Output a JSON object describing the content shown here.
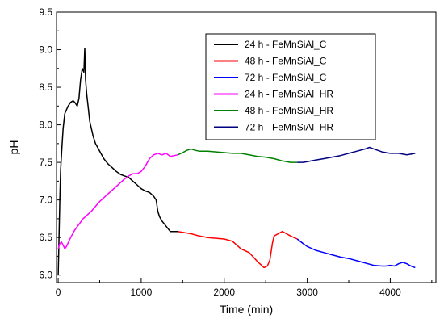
{
  "chart_data": {
    "type": "line",
    "title": "",
    "xlabel": "Time (min)",
    "ylabel": "pH",
    "xlim": [
      -20,
      4550
    ],
    "ylim": [
      5.9,
      9.5
    ],
    "xticks": [
      0,
      1000,
      2000,
      3000,
      4000
    ],
    "yticks": [
      6.0,
      6.5,
      7.0,
      7.5,
      8.0,
      8.5,
      9.0,
      9.5
    ],
    "ytick_labels": [
      "6.0",
      "6.5",
      "7.0",
      "7.5",
      "8.0",
      "8.5",
      "9.0",
      "9.5"
    ],
    "grid": false,
    "legend_position": "top-right",
    "series": [
      {
        "name": "24 h - FeMnSiAl_C",
        "color": "#000000",
        "x": [
          0,
          10,
          20,
          30,
          45,
          60,
          80,
          100,
          120,
          150,
          180,
          200,
          230,
          250,
          270,
          290,
          310,
          320,
          330,
          345,
          360,
          380,
          400,
          420,
          450,
          500,
          550,
          600,
          650,
          700,
          750,
          800,
          850,
          900,
          950,
          1000,
          1050,
          1100,
          1150,
          1180,
          1200,
          1220,
          1250,
          1300,
          1350,
          1400,
          1440
        ],
        "y": [
          6.0,
          6.5,
          7.0,
          7.4,
          7.7,
          7.95,
          8.15,
          8.2,
          8.25,
          8.3,
          8.32,
          8.3,
          8.25,
          8.35,
          8.6,
          8.75,
          8.7,
          9.02,
          8.6,
          8.4,
          8.25,
          8.05,
          7.95,
          7.85,
          7.75,
          7.65,
          7.55,
          7.48,
          7.43,
          7.38,
          7.34,
          7.32,
          7.3,
          7.25,
          7.2,
          7.15,
          7.12,
          7.1,
          7.05,
          7.0,
          6.85,
          6.78,
          6.72,
          6.65,
          6.58,
          6.58,
          6.58
        ]
      },
      {
        "name": "48 h - FeMnSiAl_C",
        "color": "#ff0000",
        "x": [
          1440,
          1500,
          1600,
          1700,
          1800,
          1900,
          2000,
          2100,
          2200,
          2300,
          2400,
          2480,
          2520,
          2550,
          2580,
          2600,
          2650,
          2700,
          2750,
          2800,
          2880
        ],
        "y": [
          6.58,
          6.57,
          6.55,
          6.52,
          6.5,
          6.49,
          6.48,
          6.45,
          6.35,
          6.3,
          6.18,
          6.1,
          6.12,
          6.2,
          6.42,
          6.52,
          6.55,
          6.58,
          6.55,
          6.52,
          6.48
        ]
      },
      {
        "name": "72 h - FeMnSiAl_C",
        "color": "#0000ff",
        "x": [
          2880,
          2950,
          3000,
          3100,
          3200,
          3300,
          3400,
          3500,
          3600,
          3700,
          3800,
          3900,
          3950,
          4000,
          4050,
          4100,
          4150,
          4200,
          4250,
          4300
        ],
        "y": [
          6.48,
          6.42,
          6.38,
          6.33,
          6.3,
          6.27,
          6.24,
          6.22,
          6.19,
          6.16,
          6.13,
          6.12,
          6.12,
          6.13,
          6.12,
          6.15,
          6.17,
          6.15,
          6.12,
          6.1
        ]
      },
      {
        "name": "24 h - FeMnSiAl_HR",
        "color": "#ff00ff",
        "x": [
          0,
          20,
          40,
          60,
          80,
          100,
          150,
          200,
          300,
          400,
          500,
          600,
          700,
          800,
          850,
          900,
          950,
          1000,
          1050,
          1100,
          1150,
          1200,
          1250,
          1300,
          1350,
          1440
        ],
        "y": [
          6.35,
          6.42,
          6.44,
          6.4,
          6.35,
          6.38,
          6.5,
          6.6,
          6.75,
          6.85,
          6.98,
          7.08,
          7.18,
          7.28,
          7.32,
          7.35,
          7.35,
          7.38,
          7.45,
          7.55,
          7.6,
          7.62,
          7.6,
          7.62,
          7.58,
          7.6
        ]
      },
      {
        "name": "48 h - FeMnSiAl_HR",
        "color": "#008000",
        "x": [
          1440,
          1500,
          1550,
          1600,
          1650,
          1700,
          1800,
          1900,
          2000,
          2100,
          2200,
          2300,
          2400,
          2500,
          2600,
          2700,
          2800,
          2880
        ],
        "y": [
          7.6,
          7.63,
          7.66,
          7.68,
          7.66,
          7.65,
          7.65,
          7.64,
          7.63,
          7.62,
          7.62,
          7.6,
          7.58,
          7.57,
          7.55,
          7.52,
          7.5,
          7.5
        ]
      },
      {
        "name": "72 h - FeMnSiAl_HR",
        "color": "#000080",
        "x": [
          2880,
          2950,
          3000,
          3100,
          3200,
          3300,
          3400,
          3500,
          3600,
          3700,
          3750,
          3800,
          3900,
          4000,
          4100,
          4200,
          4300
        ],
        "y": [
          7.5,
          7.5,
          7.51,
          7.53,
          7.55,
          7.57,
          7.59,
          7.62,
          7.65,
          7.68,
          7.7,
          7.68,
          7.64,
          7.62,
          7.62,
          7.6,
          7.62
        ]
      }
    ]
  }
}
